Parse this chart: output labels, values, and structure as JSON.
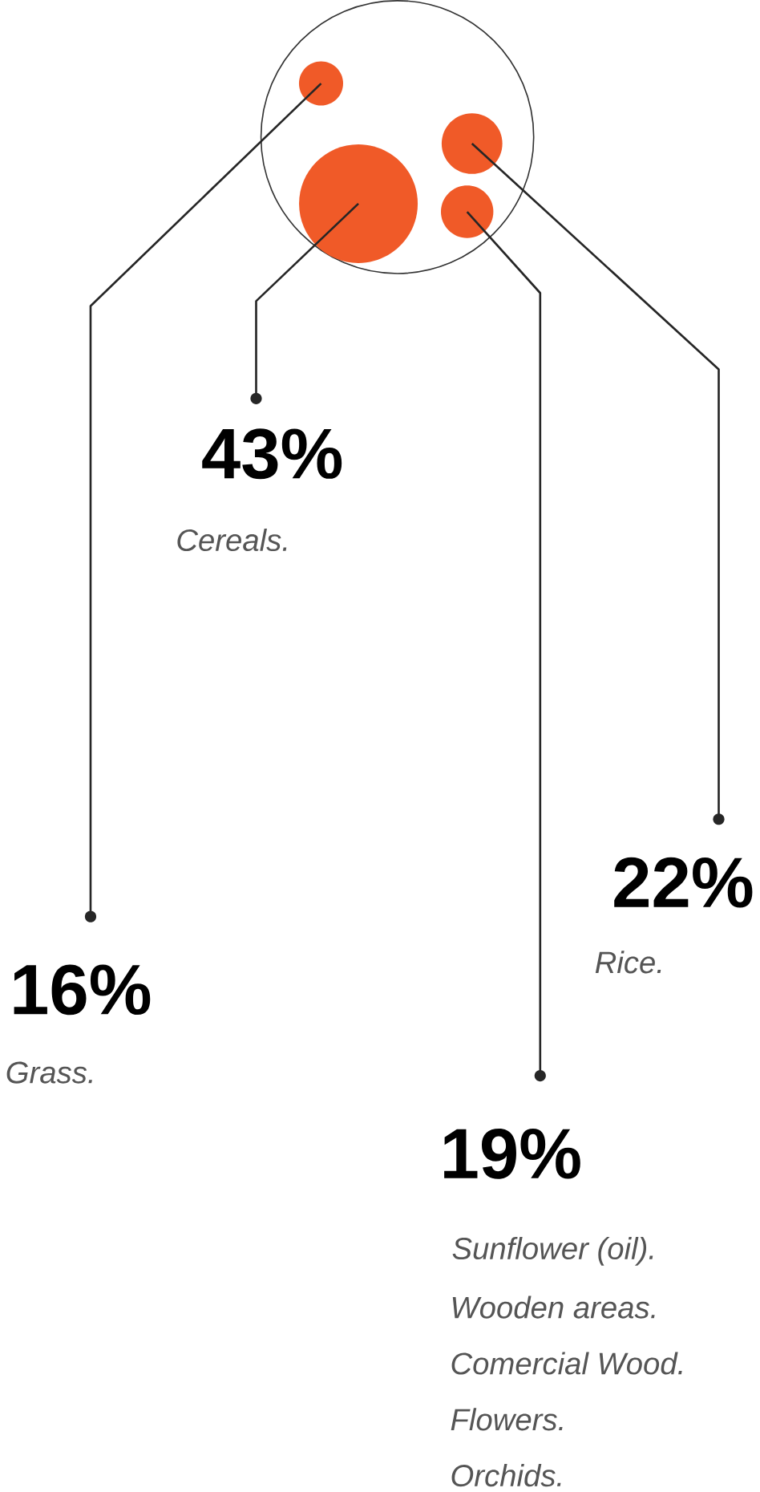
{
  "chart_data": {
    "type": "other",
    "categories": [
      "Cereals.",
      "Grass.",
      "Rice.",
      "Sunflower (oil)."
    ],
    "values": [
      43,
      16,
      22,
      19
    ],
    "value_labels": [
      "43%",
      "16%",
      "22%",
      "19%"
    ],
    "color": "#f05a28",
    "annotations": [
      "Wooden areas.",
      "Comercial Wood.",
      "Flowers.",
      "Orchids."
    ]
  }
}
